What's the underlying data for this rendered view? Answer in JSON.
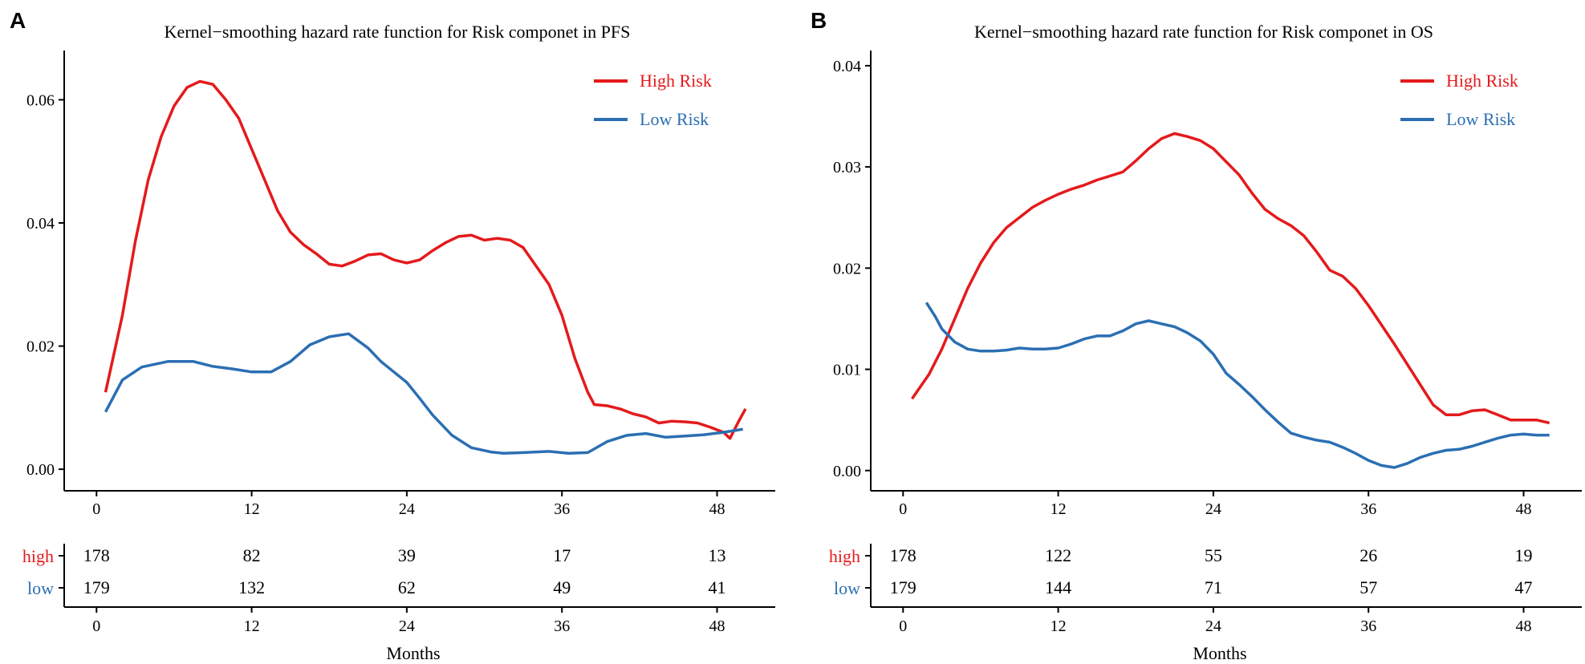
{
  "colors": {
    "high": "#e41a1c",
    "low": "#2b6fb2",
    "axis": "#000000"
  },
  "x_ticks": [
    "0",
    "12",
    "24",
    "36",
    "48"
  ],
  "risk_table_x_label": "Months",
  "chart_data": [
    {
      "panel": "A",
      "type": "line",
      "title": "Kernel−smoothing hazard rate function for Risk componet in PFS",
      "xlabel": "Months",
      "ylabel": "",
      "xlim": [
        -2.5,
        52.5
      ],
      "ylim": [
        -0.0035,
        0.068
      ],
      "y_ticks": [
        0.0,
        0.02,
        0.04,
        0.06
      ],
      "y_tick_labels": [
        "0.00",
        "0.02",
        "0.04",
        "0.06"
      ],
      "x_ticks": [
        0,
        12,
        24,
        36,
        48
      ],
      "legend": [
        "High Risk",
        "Low Risk"
      ],
      "legend_position": "top-right",
      "series": [
        {
          "name": "High Risk",
          "points": [
            [
              0.7,
              0.0125
            ],
            [
              2,
              0.025
            ],
            [
              3,
              0.037
            ],
            [
              4,
              0.047
            ],
            [
              5,
              0.054
            ],
            [
              6,
              0.059
            ],
            [
              7,
              0.062
            ],
            [
              8,
              0.063
            ],
            [
              9,
              0.0625
            ],
            [
              10,
              0.06
            ],
            [
              11,
              0.057
            ],
            [
              12,
              0.052
            ],
            [
              13,
              0.047
            ],
            [
              14,
              0.042
            ],
            [
              15,
              0.0385
            ],
            [
              16,
              0.0365
            ],
            [
              17,
              0.035
            ],
            [
              18,
              0.0333
            ],
            [
              19,
              0.033
            ],
            [
              20,
              0.0338
            ],
            [
              21,
              0.0348
            ],
            [
              22,
              0.035
            ],
            [
              23,
              0.034
            ],
            [
              24,
              0.0335
            ],
            [
              25,
              0.034
            ],
            [
              26,
              0.0355
            ],
            [
              27,
              0.0368
            ],
            [
              28,
              0.0378
            ],
            [
              29,
              0.038
            ],
            [
              30,
              0.0372
            ],
            [
              31,
              0.0375
            ],
            [
              32,
              0.0372
            ],
            [
              33,
              0.036
            ],
            [
              34,
              0.033
            ],
            [
              35,
              0.03
            ],
            [
              36,
              0.025
            ],
            [
              37,
              0.018
            ],
            [
              38,
              0.0125
            ],
            [
              38.5,
              0.0105
            ],
            [
              39.5,
              0.0103
            ],
            [
              40.5,
              0.0098
            ],
            [
              41.5,
              0.009
            ],
            [
              42.5,
              0.0085
            ],
            [
              43.5,
              0.0075
            ],
            [
              44.5,
              0.0078
            ],
            [
              45.5,
              0.0077
            ],
            [
              46.5,
              0.0075
            ],
            [
              47.5,
              0.0068
            ],
            [
              48.5,
              0.006
            ],
            [
              49,
              0.005
            ],
            [
              49.6,
              0.0075
            ],
            [
              50.2,
              0.0098
            ]
          ]
        },
        {
          "name": "Low Risk",
          "points": [
            [
              0.7,
              0.0093
            ],
            [
              2,
              0.0145
            ],
            [
              3.5,
              0.0166
            ],
            [
              5.5,
              0.0175
            ],
            [
              7.5,
              0.0175
            ],
            [
              9,
              0.0167
            ],
            [
              10.5,
              0.0163
            ],
            [
              12,
              0.0158
            ],
            [
              13.5,
              0.0158
            ],
            [
              15,
              0.0175
            ],
            [
              16.5,
              0.0202
            ],
            [
              18,
              0.0215
            ],
            [
              19.5,
              0.022
            ],
            [
              21,
              0.0197
            ],
            [
              22,
              0.0175
            ],
            [
              23,
              0.0158
            ],
            [
              24,
              0.0141
            ],
            [
              25,
              0.0115
            ],
            [
              26,
              0.0088
            ],
            [
              27.5,
              0.0055
            ],
            [
              29,
              0.0035
            ],
            [
              30.5,
              0.0028
            ],
            [
              31.5,
              0.0026
            ],
            [
              33,
              0.0027
            ],
            [
              35,
              0.0029
            ],
            [
              36.5,
              0.0026
            ],
            [
              38,
              0.0027
            ],
            [
              39.5,
              0.0045
            ],
            [
              41,
              0.0055
            ],
            [
              42.5,
              0.0058
            ],
            [
              44,
              0.0052
            ],
            [
              45.5,
              0.0054
            ],
            [
              47,
              0.0056
            ],
            [
              48.5,
              0.006
            ],
            [
              50,
              0.0065
            ]
          ]
        }
      ],
      "risk_table": {
        "rows": [
          {
            "label": "high",
            "values": [
              "178",
              "82",
              "39",
              "17",
              "13"
            ]
          },
          {
            "label": "low",
            "values": [
              "179",
              "132",
              "62",
              "49",
              "41"
            ]
          }
        ]
      }
    },
    {
      "panel": "B",
      "type": "line",
      "title": "Kernel−smoothing hazard rate function for Risk componet in OS",
      "xlabel": "Months",
      "ylabel": "",
      "xlim": [
        -2.5,
        52.5
      ],
      "ylim": [
        -0.002,
        0.0415
      ],
      "y_ticks": [
        0.0,
        0.01,
        0.02,
        0.03,
        0.04
      ],
      "y_tick_labels": [
        "0.00",
        "0.01",
        "0.02",
        "0.03",
        "0.04"
      ],
      "x_ticks": [
        0,
        12,
        24,
        36,
        48
      ],
      "legend": [
        "High Risk",
        "Low Risk"
      ],
      "legend_position": "top-right",
      "series": [
        {
          "name": "High Risk",
          "points": [
            [
              0.7,
              0.0071
            ],
            [
              2,
              0.0095
            ],
            [
              3,
              0.012
            ],
            [
              4,
              0.015
            ],
            [
              5,
              0.018
            ],
            [
              6,
              0.0205
            ],
            [
              7,
              0.0225
            ],
            [
              8,
              0.024
            ],
            [
              9,
              0.025
            ],
            [
              10,
              0.026
            ],
            [
              11,
              0.0267
            ],
            [
              12,
              0.0273
            ],
            [
              13,
              0.0278
            ],
            [
              14,
              0.0282
            ],
            [
              15,
              0.0287
            ],
            [
              16,
              0.0291
            ],
            [
              17,
              0.0295
            ],
            [
              18,
              0.0306
            ],
            [
              19,
              0.0318
            ],
            [
              20,
              0.0328
            ],
            [
              21,
              0.0333
            ],
            [
              22,
              0.033
            ],
            [
              23,
              0.0326
            ],
            [
              24,
              0.0318
            ],
            [
              25,
              0.0305
            ],
            [
              26,
              0.0292
            ],
            [
              27,
              0.0274
            ],
            [
              28,
              0.0258
            ],
            [
              29,
              0.0249
            ],
            [
              30,
              0.0242
            ],
            [
              31,
              0.0232
            ],
            [
              32,
              0.0216
            ],
            [
              33,
              0.0198
            ],
            [
              34,
              0.0192
            ],
            [
              35,
              0.018
            ],
            [
              36,
              0.0163
            ],
            [
              37,
              0.0144
            ],
            [
              38,
              0.0125
            ],
            [
              39,
              0.0105
            ],
            [
              40,
              0.0085
            ],
            [
              41,
              0.0065
            ],
            [
              42,
              0.0055
            ],
            [
              43,
              0.0055
            ],
            [
              44,
              0.0059
            ],
            [
              45,
              0.006
            ],
            [
              46,
              0.0055
            ],
            [
              47,
              0.005
            ],
            [
              48,
              0.005
            ],
            [
              49,
              0.005
            ],
            [
              50,
              0.0047
            ]
          ]
        },
        {
          "name": "Low Risk",
          "points": [
            [
              1.8,
              0.0166
            ],
            [
              2.5,
              0.0152
            ],
            [
              3,
              0.014
            ],
            [
              4,
              0.0127
            ],
            [
              5,
              0.012
            ],
            [
              6,
              0.0118
            ],
            [
              7,
              0.0118
            ],
            [
              8,
              0.0119
            ],
            [
              9,
              0.0121
            ],
            [
              10,
              0.012
            ],
            [
              11,
              0.012
            ],
            [
              12,
              0.0121
            ],
            [
              13,
              0.0125
            ],
            [
              14,
              0.013
            ],
            [
              15,
              0.0133
            ],
            [
              16,
              0.0133
            ],
            [
              17,
              0.0138
            ],
            [
              18,
              0.0145
            ],
            [
              19,
              0.0148
            ],
            [
              20,
              0.0145
            ],
            [
              21,
              0.0142
            ],
            [
              22,
              0.0136
            ],
            [
              23,
              0.0128
            ],
            [
              24,
              0.0115
            ],
            [
              25,
              0.0096
            ],
            [
              26,
              0.0085
            ],
            [
              27,
              0.0073
            ],
            [
              28,
              0.006
            ],
            [
              29,
              0.0048
            ],
            [
              30,
              0.0037
            ],
            [
              31,
              0.0033
            ],
            [
              32,
              0.003
            ],
            [
              33,
              0.0028
            ],
            [
              34,
              0.0023
            ],
            [
              35,
              0.0017
            ],
            [
              36,
              0.001
            ],
            [
              37,
              0.0005
            ],
            [
              38,
              0.0003
            ],
            [
              39,
              0.0007
            ],
            [
              40,
              0.0013
            ],
            [
              41,
              0.0017
            ],
            [
              42,
              0.002
            ],
            [
              43,
              0.0021
            ],
            [
              44,
              0.0024
            ],
            [
              45,
              0.0028
            ],
            [
              46,
              0.0032
            ],
            [
              47,
              0.0035
            ],
            [
              48,
              0.0036
            ],
            [
              49,
              0.0035
            ],
            [
              50,
              0.0035
            ]
          ]
        }
      ],
      "risk_table": {
        "rows": [
          {
            "label": "high",
            "values": [
              "178",
              "122",
              "55",
              "26",
              "19"
            ]
          },
          {
            "label": "low",
            "values": [
              "179",
              "144",
              "71",
              "57",
              "47"
            ]
          }
        ]
      }
    }
  ]
}
